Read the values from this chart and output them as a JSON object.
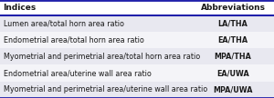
{
  "header": [
    "Indices",
    "Abbreviations"
  ],
  "rows": [
    [
      "Lumen area/total horn area ratio",
      "LA/THA"
    ],
    [
      "Endometrial area/total horn area ratio",
      "EA/THA"
    ],
    [
      "Myometrial and perimetrial area/total horn area ratio",
      "MPA/THA"
    ],
    [
      "Endometrial area/uterine wall area ratio",
      "EA/UWA"
    ],
    [
      "Myometrial and perimetrial area/uterine wall area ratio",
      "MPA/UWA"
    ]
  ],
  "header_bg": "#FFFFFF",
  "header_text_color": "#1A1A1A",
  "row_bg_odd": "#E8E8F0",
  "row_bg_even": "#F4F4F8",
  "border_color": "#2020AA",
  "text_color": "#1A1A1A",
  "font_size": 5.8,
  "header_font_size": 6.5,
  "col_split": 0.7,
  "fig_width": 3.0,
  "fig_height": 1.08,
  "dpi": 100
}
